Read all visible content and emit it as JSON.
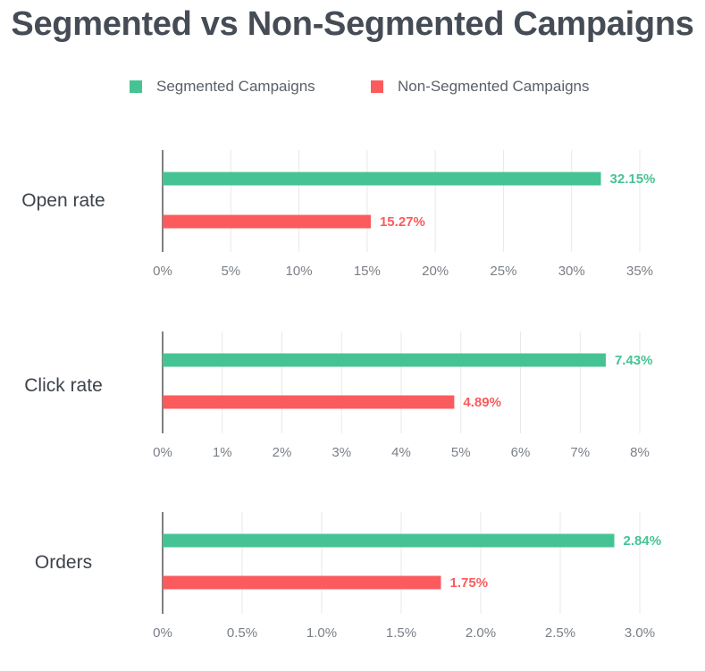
{
  "title": "Segmented vs Non-Segmented Campaigns",
  "legend": [
    {
      "label": "Segmented Campaigns",
      "color": "#46c394"
    },
    {
      "label": "Non-Segmented Campaigns",
      "color": "#fb5b5d"
    }
  ],
  "colors": {
    "segmented": "#46c394",
    "non_segmented": "#fb5b5d",
    "grid": "#e8e8e8",
    "axis": "#555555",
    "tick": "#7a7f86",
    "category": "#3d434b"
  },
  "chart_data": [
    {
      "type": "bar",
      "category": "Open rate",
      "series": [
        {
          "name": "Segmented Campaigns",
          "value": 32.15,
          "label": "32.15%"
        },
        {
          "name": "Non-Segmented Campaigns",
          "value": 15.27,
          "label": "15.27%"
        }
      ],
      "xlim": [
        0,
        35
      ],
      "ticks": [
        0,
        5,
        10,
        15,
        20,
        25,
        30,
        35
      ],
      "tick_labels": [
        "0%",
        "5%",
        "10%",
        "15%",
        "20%",
        "25%",
        "30%",
        "35%"
      ]
    },
    {
      "type": "bar",
      "category": "Click rate",
      "series": [
        {
          "name": "Segmented Campaigns",
          "value": 7.43,
          "label": "7.43%"
        },
        {
          "name": "Non-Segmented Campaigns",
          "value": 4.89,
          "label": "4.89%"
        }
      ],
      "xlim": [
        0,
        8
      ],
      "ticks": [
        0,
        1,
        2,
        3,
        4,
        5,
        6,
        7,
        8
      ],
      "tick_labels": [
        "0%",
        "1%",
        "2%",
        "3%",
        "4%",
        "5%",
        "6%",
        "7%",
        "8%"
      ]
    },
    {
      "type": "bar",
      "category": "Orders",
      "series": [
        {
          "name": "Segmented Campaigns",
          "value": 2.84,
          "label": "2.84%"
        },
        {
          "name": "Non-Segmented Campaigns",
          "value": 1.75,
          "label": "1.75%"
        }
      ],
      "xlim": [
        0,
        3
      ],
      "ticks": [
        0,
        0.5,
        1,
        1.5,
        2,
        2.5,
        3
      ],
      "tick_labels": [
        "0%",
        "0.5%",
        "1.0%",
        "1.5%",
        "2.0%",
        "2.5%",
        "3.0%"
      ]
    }
  ]
}
